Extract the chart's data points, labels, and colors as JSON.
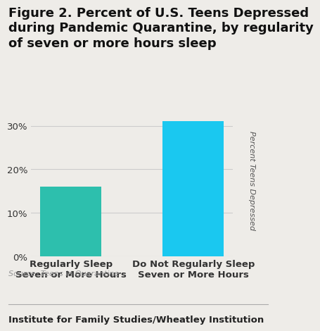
{
  "title_line1": "Figure 2. Percent of U.S. Teens Depressed",
  "title_line2": "during Pandemic Quarantine, by regularity",
  "title_line3": "of seven or more hours sleep",
  "categories": [
    "Regularly Sleep\nSeven or More Hours",
    "Do Not Regularly Sleep\nSeven or More Hours"
  ],
  "values": [
    16,
    31
  ],
  "bar_colors": [
    "#2dbfad",
    "#1ac8f0"
  ],
  "yticks": [
    0,
    10,
    20,
    30
  ],
  "ytick_labels": [
    "0%",
    "10%",
    "20%",
    "30%"
  ],
  "ylim": [
    0,
    35
  ],
  "ylabel_right": "Percent Teens Depressed",
  "source": "Source: Teens in Quarantine",
  "footer": "Institute for Family Studies/Wheatley Institution",
  "background_color": "#eeece8",
  "title_fontsize": 13.0,
  "tick_fontsize": 9.5,
  "xlabel_fontsize": 9.5,
  "source_fontsize": 8.0,
  "footer_fontsize": 9.5
}
